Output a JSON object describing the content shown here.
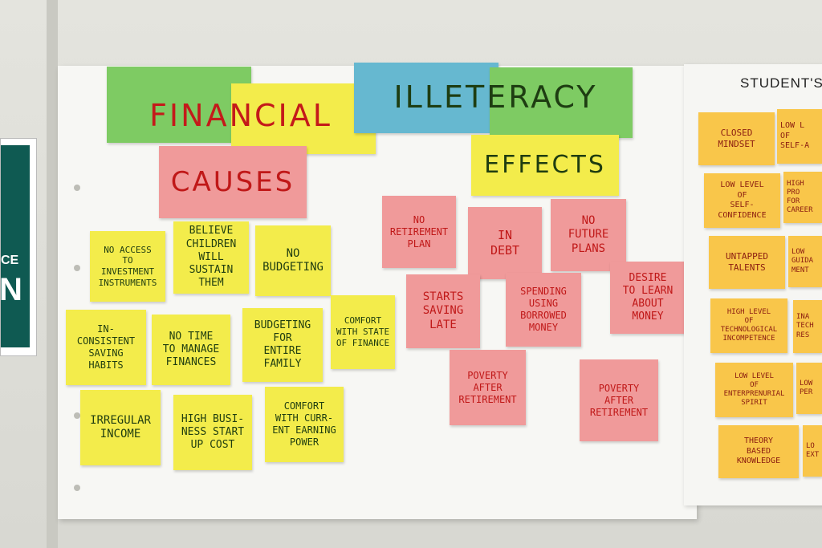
{
  "headings": {
    "financial": "FINANCIAL",
    "illiteracy": "ILLETERACY",
    "causes": "CAUSES",
    "effects": "EFFECTS"
  },
  "causes": [
    "NO ACCESS\nTO INVESTMENT\nINSTRUMENTS",
    "BELIEVE\nCHILDREN\nWILL SUSTAIN\nTHEM",
    "NO\nBUDGETING",
    "IN-\nCONSISTENT\nSAVING\nHABITS",
    "NO TIME\nTO MANAGE\nFINANCES",
    "BUDGETING\nFOR\nENTIRE\nFAMILY",
    "COMFORT\nWITH STATE\nOF FINANCE",
    "IRREGULAR\nINCOME",
    "HIGH BUSI-\nNESS START\nUP COST",
    "COMFORT\nWITH CURR-\nENT EARNING\nPOWER"
  ],
  "effects": [
    "NO\nRETIREMENT\nPLAN",
    "IN\nDEBT",
    "NO\nFUTURE\nPLANS",
    "STARTS\nSAVING\nLATE",
    "SPENDING\nUSING\nBORROWED\nMONEY",
    "DESIRE\nTO LEARN\nABOUT\nMONEY",
    "POVERTY\nAFTER\nRETIREMENT",
    "POVERTY\nAFTER\nRETIREMENT"
  ],
  "right_board": {
    "title": "STUDENT'S",
    "notes": [
      "CLOSED\nMINDSET",
      "LOW LEVEL\nOF\nSELF-CONFIDENCE",
      "UNTAPPED\nTALENTS",
      "HIGH LEVEL\nOF\nTECHNOLOGICAL\nINCOMPETENCE",
      "LOW LEVEL\nOF\nENTERPRENURIAL\nSPIRIT",
      "THEORY\nBASED\nKNOWLEDGE"
    ],
    "partial_notes": [
      "LOW L\nOF\nSELF-A",
      "HIGH PRO\nFOR\nCAREER",
      "LOW\nGUIDA\nMENT",
      "INA\nTECH\nRES",
      "LOW\nPER",
      "LO\nEXT"
    ]
  },
  "poster": {
    "line1": "CE",
    "line2": "N"
  },
  "colors": {
    "yellow": "#f3ec4b",
    "pink": "#f09a9a",
    "green": "#7ecb63",
    "blue": "#66b8d0",
    "orange": "#f9c64a"
  }
}
